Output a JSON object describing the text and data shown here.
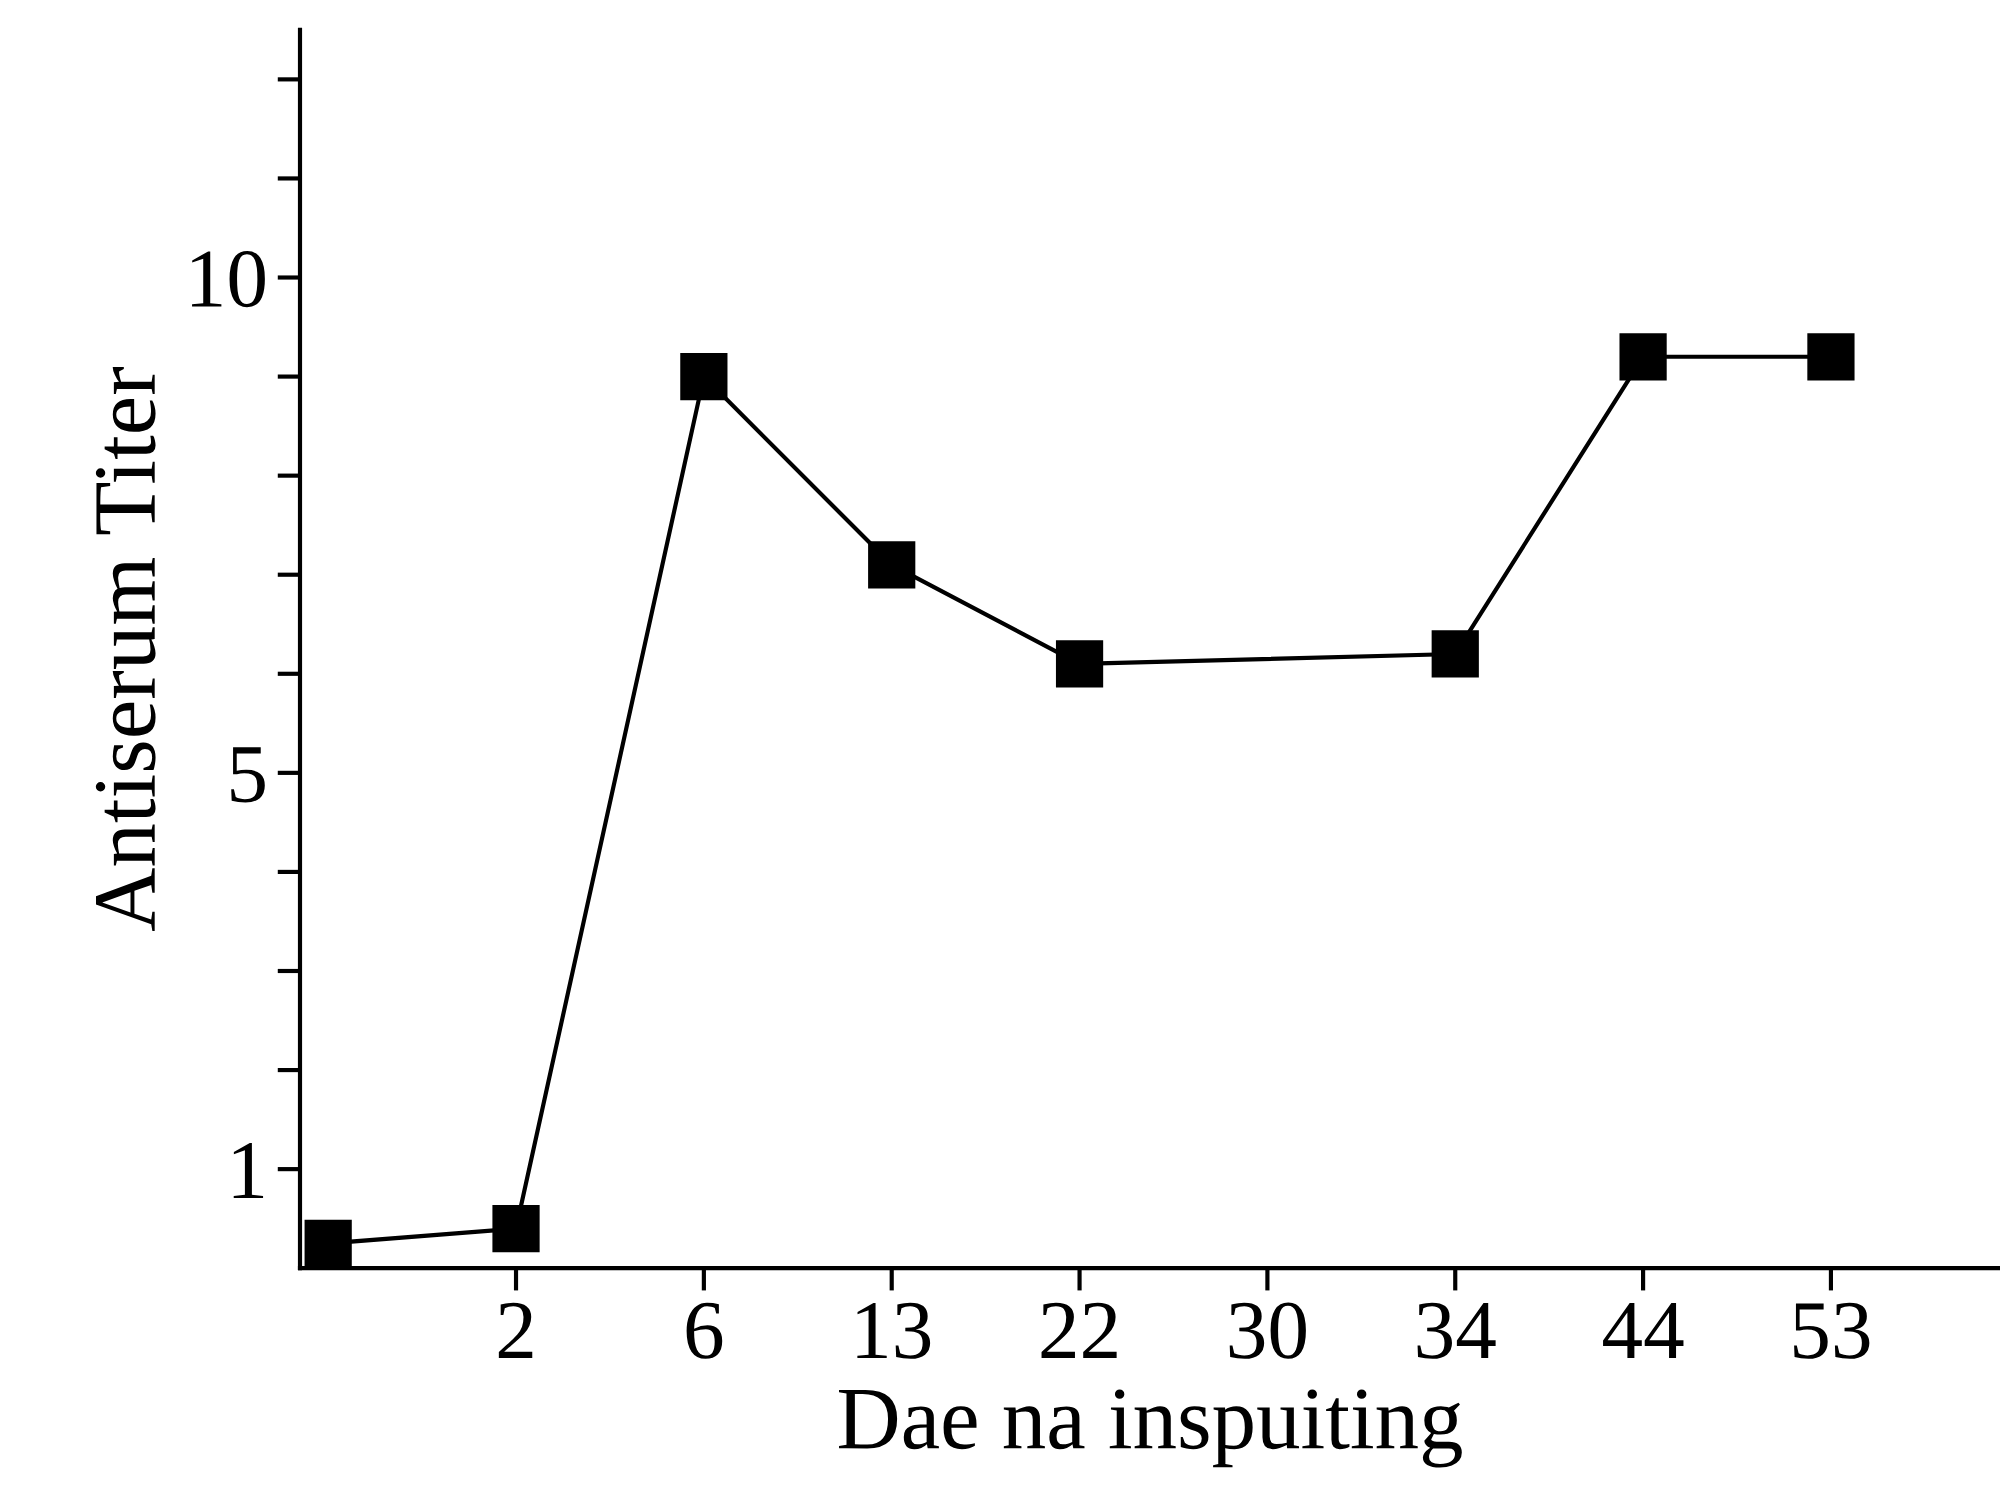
{
  "chart_data": {
    "type": "line",
    "xlabel": "Dae na inspuiting",
    "ylabel": "Antiserum Titer",
    "categories": [
      null,
      "2",
      "6",
      "13",
      "22",
      "30",
      "34",
      "44",
      "53"
    ],
    "series": [
      {
        "color": "#000000",
        "values": [
          0.25,
          0.4,
          9.0,
          7.1,
          6.1,
          null,
          6.2,
          9.2,
          9.2
        ]
      }
    ],
    "marker": "square",
    "line_style": "solid",
    "grid": false,
    "ylim": [
      0,
      12.5
    ],
    "yticks": [
      1,
      {
        "value": 2,
        "label": null
      },
      {
        "value": 3,
        "label": null
      },
      {
        "value": 4,
        "label": null
      },
      5,
      {
        "value": 6,
        "label": null
      },
      {
        "value": 7,
        "label": null
      },
      {
        "value": 8,
        "label": null
      },
      {
        "value": 9,
        "label": null
      },
      10,
      {
        "value": 11,
        "label": null
      },
      {
        "value": 12,
        "label": null
      }
    ]
  }
}
